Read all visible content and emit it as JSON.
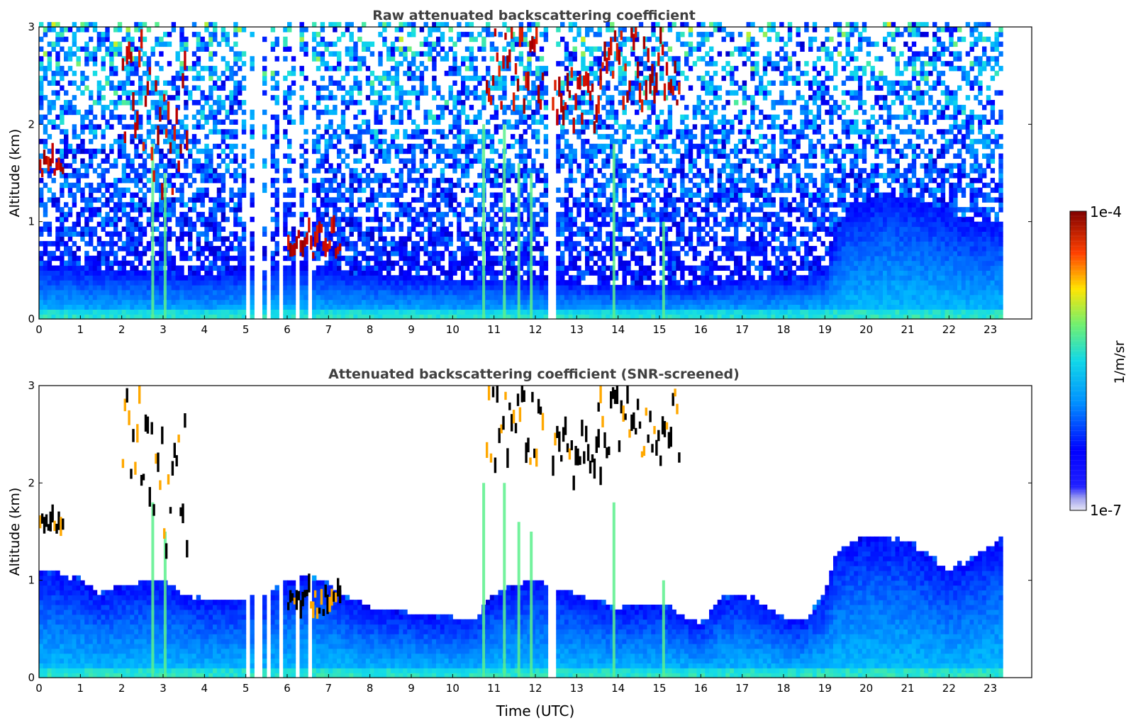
{
  "figure": {
    "xlabel": "Time (UTC)",
    "colorbar": {
      "label": "1/m/sr",
      "max_label": "1e-4",
      "min_label": "1e-7",
      "vmin": 1e-07,
      "vmax": 0.0001,
      "scale": "log",
      "colormap": "jet with pale-lavender low end"
    }
  },
  "chart_data": [
    {
      "type": "heatmap",
      "title": "Raw attenuated backscattering coefficient",
      "ylabel": "Altitude (km)",
      "xlabel": "",
      "xlim": [
        0,
        24
      ],
      "ylim": [
        0,
        3
      ],
      "xticks": [
        0,
        1,
        2,
        3,
        4,
        5,
        6,
        7,
        8,
        9,
        10,
        11,
        12,
        13,
        14,
        15,
        16,
        17,
        18,
        19,
        20,
        21,
        22,
        23
      ],
      "yticks": [
        0,
        1,
        2,
        3
      ],
      "data_end_hour": 23.3,
      "grid": false,
      "screening": "none",
      "boundary_layer_top_km": [
        [
          0,
          0.55
        ],
        [
          2,
          0.5
        ],
        [
          4,
          0.45
        ],
        [
          6,
          0.55
        ],
        [
          7,
          0.5
        ],
        [
          8,
          0.45
        ],
        [
          10,
          0.42
        ],
        [
          12,
          0.4
        ],
        [
          14,
          0.35
        ],
        [
          16,
          0.35
        ],
        [
          17,
          0.4
        ],
        [
          18,
          0.4
        ],
        [
          19,
          0.5
        ],
        [
          19.5,
          1.1
        ],
        [
          20.5,
          1.3
        ],
        [
          21.5,
          1.2
        ],
        [
          22.5,
          1.0
        ],
        [
          23.3,
          1.0
        ]
      ],
      "cloud_features": [
        {
          "t0": 0.0,
          "t1": 0.6,
          "z0": 1.45,
          "z1": 1.6
        },
        {
          "t0": 2.0,
          "t1": 2.7,
          "z0": 1.7,
          "z1": 2.9
        },
        {
          "t0": 2.7,
          "t1": 3.6,
          "z0": 1.2,
          "z1": 2.6
        },
        {
          "t0": 6.0,
          "t1": 7.3,
          "z0": 0.6,
          "z1": 0.9
        },
        {
          "t0": 10.8,
          "t1": 12.2,
          "z0": 2.1,
          "z1": 3.0
        },
        {
          "t0": 12.4,
          "t1": 13.6,
          "z0": 1.9,
          "z1": 2.5
        },
        {
          "t0": 13.5,
          "t1": 15.5,
          "z0": 2.1,
          "z1": 2.9
        }
      ],
      "precip_streaks": [
        {
          "t": 2.75,
          "z_top": 1.8
        },
        {
          "t": 3.05,
          "z_top": 1.5
        },
        {
          "t": 10.75,
          "z_top": 2.0
        },
        {
          "t": 11.25,
          "z_top": 2.0
        },
        {
          "t": 11.6,
          "z_top": 1.6
        },
        {
          "t": 11.9,
          "z_top": 1.5
        },
        {
          "t": 13.9,
          "z_top": 1.8
        },
        {
          "t": 15.1,
          "z_top": 1.0
        }
      ],
      "missing_columns": [
        5.05,
        5.2,
        5.35,
        5.5,
        5.8,
        6.25,
        6.55,
        12.35,
        12.45
      ]
    },
    {
      "type": "heatmap",
      "title": "Attenuated backscattering coefficient (SNR-screened)",
      "ylabel": "Altitude (km)",
      "xlabel": "Time (UTC)",
      "xlim": [
        0,
        24
      ],
      "ylim": [
        0,
        3
      ],
      "xticks": [
        0,
        1,
        2,
        3,
        4,
        5,
        6,
        7,
        8,
        9,
        10,
        11,
        12,
        13,
        14,
        15,
        16,
        17,
        18,
        19,
        20,
        21,
        22,
        23
      ],
      "yticks": [
        0,
        1,
        2,
        3
      ],
      "data_end_hour": 23.3,
      "grid": false,
      "screening": "SNR",
      "signal_top_km": [
        [
          0,
          1.1
        ],
        [
          1,
          1.0
        ],
        [
          1.5,
          0.85
        ],
        [
          2,
          0.95
        ],
        [
          3,
          1.0
        ],
        [
          3.5,
          0.85
        ],
        [
          4,
          0.8
        ],
        [
          5,
          0.8
        ],
        [
          5.5,
          0.85
        ],
        [
          6,
          1.0
        ],
        [
          6.5,
          1.05
        ],
        [
          7,
          0.95
        ],
        [
          7.5,
          0.8
        ],
        [
          8,
          0.7
        ],
        [
          9,
          0.65
        ],
        [
          10,
          0.6
        ],
        [
          10.5,
          0.6
        ],
        [
          11,
          0.85
        ],
        [
          12,
          1.0
        ],
        [
          12.5,
          0.9
        ],
        [
          13,
          0.85
        ],
        [
          14,
          0.7
        ],
        [
          15,
          0.75
        ],
        [
          15.5,
          0.65
        ],
        [
          16,
          0.55
        ],
        [
          16.5,
          0.8
        ],
        [
          17,
          0.85
        ],
        [
          17.5,
          0.75
        ],
        [
          18,
          0.6
        ],
        [
          18.5,
          0.6
        ],
        [
          19,
          0.85
        ],
        [
          19.3,
          1.3
        ],
        [
          20,
          1.45
        ],
        [
          21,
          1.4
        ],
        [
          21.5,
          1.25
        ],
        [
          22,
          1.1
        ],
        [
          22.5,
          1.2
        ],
        [
          23.3,
          1.45
        ]
      ],
      "cloud_features": [
        {
          "t0": 0.0,
          "t1": 0.6,
          "z0": 1.45,
          "z1": 1.6
        },
        {
          "t0": 2.0,
          "t1": 2.7,
          "z0": 1.7,
          "z1": 2.9
        },
        {
          "t0": 2.7,
          "t1": 3.6,
          "z0": 1.2,
          "z1": 2.6
        },
        {
          "t0": 6.0,
          "t1": 7.3,
          "z0": 0.6,
          "z1": 0.9
        },
        {
          "t0": 10.8,
          "t1": 12.2,
          "z0": 2.1,
          "z1": 3.0
        },
        {
          "t0": 12.4,
          "t1": 13.6,
          "z0": 1.9,
          "z1": 2.5
        },
        {
          "t0": 13.5,
          "t1": 15.5,
          "z0": 2.1,
          "z1": 2.9
        }
      ],
      "precip_streaks": [
        {
          "t": 2.75,
          "z_top": 1.8
        },
        {
          "t": 3.05,
          "z_top": 1.5
        },
        {
          "t": 10.75,
          "z_top": 2.0
        },
        {
          "t": 11.25,
          "z_top": 2.0
        },
        {
          "t": 11.6,
          "z_top": 1.6
        },
        {
          "t": 11.9,
          "z_top": 1.5
        },
        {
          "t": 13.9,
          "z_top": 1.8
        },
        {
          "t": 15.1,
          "z_top": 1.0
        }
      ],
      "missing_columns": [
        5.05,
        5.2,
        5.35,
        5.5,
        5.8,
        6.25,
        6.55,
        12.35,
        12.45
      ]
    }
  ]
}
